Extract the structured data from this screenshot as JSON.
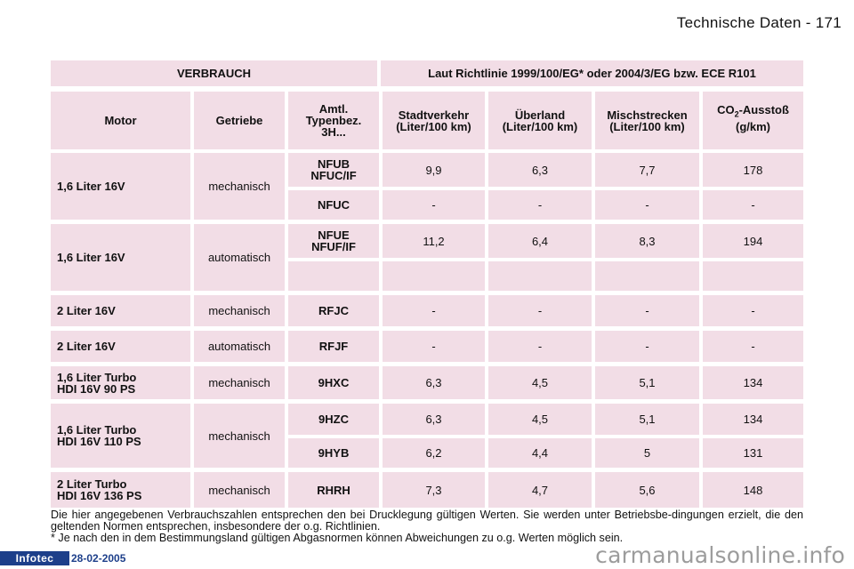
{
  "page": {
    "header": "Technische Daten - 171"
  },
  "table": {
    "title_left": "VERBRAUCH",
    "title_right": "Laut Richtlinie 1999/100/EG* oder 2004/3/EG bzw. ECE R101",
    "headers": {
      "motor": "Motor",
      "getriebe": "Getriebe",
      "typ": "Amtl.\nTypenbez.\n3H...",
      "stadt": "Stadtverkehr\n(Liter/100 km)",
      "ueberland": "Überland\n(Liter/100 km)",
      "misch": "Mischstrecken\n(Liter/100 km)",
      "co2_prefix": "CO",
      "co2_sub": "2",
      "co2_suffix": "-Ausstoß",
      "co2_unit": "(g/km)"
    },
    "groups": [
      {
        "motor": "1,6 Liter 16V",
        "getriebe": "mechanisch",
        "rows": [
          {
            "typ": "NFUB\nNFUC/IF",
            "stadt": "9,9",
            "ueberland": "6,3",
            "misch": "7,7",
            "co2": "178"
          },
          {
            "typ": "NFUC",
            "stadt": "-",
            "ueberland": "-",
            "misch": "-",
            "co2": "-"
          }
        ]
      },
      {
        "motor": "1,6 Liter 16V",
        "getriebe": "automatisch",
        "rows": [
          {
            "typ": "NFUE\nNFUF/IF",
            "stadt": "11,2",
            "ueberland": "6,4",
            "misch": "8,3",
            "co2": "194"
          },
          {
            "typ": "",
            "stadt": "",
            "ueberland": "",
            "misch": "",
            "co2": ""
          }
        ]
      },
      {
        "motor": "2 Liter 16V",
        "getriebe": "mechanisch",
        "rows": [
          {
            "typ": "RFJC",
            "stadt": "-",
            "ueberland": "-",
            "misch": "-",
            "co2": "-"
          }
        ]
      },
      {
        "motor": "2 Liter 16V",
        "getriebe": "automatisch",
        "rows": [
          {
            "typ": "RFJF",
            "stadt": "-",
            "ueberland": "-",
            "misch": "-",
            "co2": "-"
          }
        ]
      },
      {
        "motor": "1,6 Liter Turbo\nHDI 16V 90 PS",
        "getriebe": "mechanisch",
        "rows": [
          {
            "typ": "9HXC",
            "stadt": "6,3",
            "ueberland": "4,5",
            "misch": "5,1",
            "co2": "134"
          }
        ]
      },
      {
        "motor": "1,6 Liter  Turbo\nHDI 16V 110 PS",
        "getriebe": "mechanisch",
        "rows": [
          {
            "typ": "9HZC",
            "stadt": "6,3",
            "ueberland": "4,5",
            "misch": "5,1",
            "co2": "134"
          },
          {
            "typ": "9HYB",
            "stadt": "6,2",
            "ueberland": "4,4",
            "misch": "5",
            "co2": "131"
          }
        ]
      },
      {
        "motor": "2 Liter Turbo\nHDI 16V 136 PS",
        "getriebe": "mechanisch",
        "rows": [
          {
            "typ": "RHRH",
            "stadt": "7,3",
            "ueberland": "4,7",
            "misch": "5,6",
            "co2": "148"
          }
        ]
      }
    ]
  },
  "footnote": {
    "line1": "Die hier angegebenen Verbrauchszahlen entsprechen den bei Drucklegung gültigen Werten. Sie werden unter Betriebsbe-dingungen erzielt, die den geltenden Normen entsprechen, insbesondere der o.g. Richtlinien.",
    "line2": "* Je nach den in dem Bestimmungsland gültigen Abgasnormen können Abweichungen zu o.g. Werten möglich sein."
  },
  "footer": {
    "brand": "Infotec",
    "date": "28-02-2005"
  },
  "watermark": "carmanualsonline.info"
}
